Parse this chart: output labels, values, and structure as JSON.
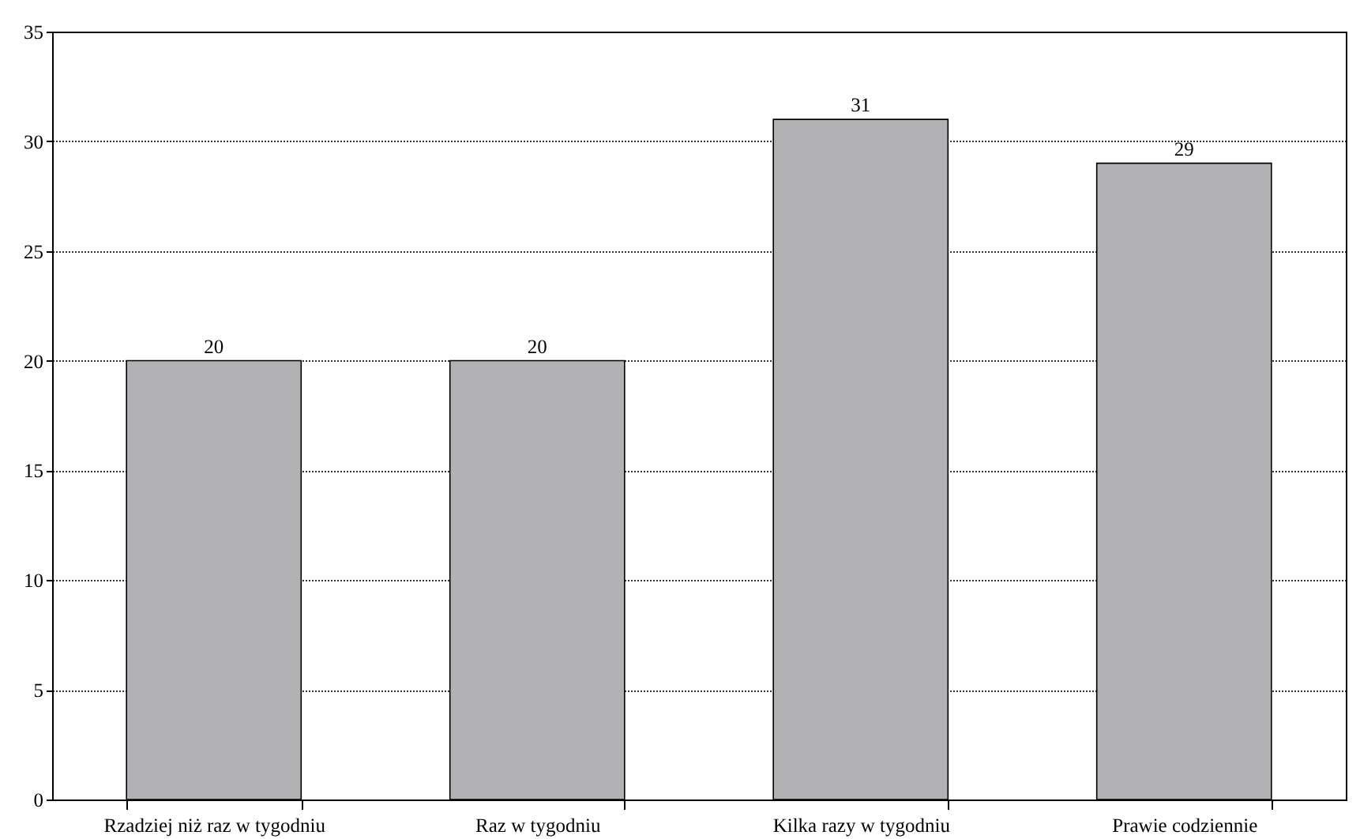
{
  "chart_data": {
    "type": "bar",
    "categories": [
      "Rzadziej niż raz w tygodniu",
      "Raz w tygodniu",
      "Kilka razy w tygodniu",
      "Prawie codziennie"
    ],
    "values": [
      20,
      20,
      31,
      29
    ],
    "color": "#b2b2b4",
    "ylim": [
      0,
      35
    ],
    "yticks": [
      0,
      5,
      10,
      15,
      20,
      25,
      30,
      35
    ],
    "grid": "y",
    "data_labels": true
  }
}
